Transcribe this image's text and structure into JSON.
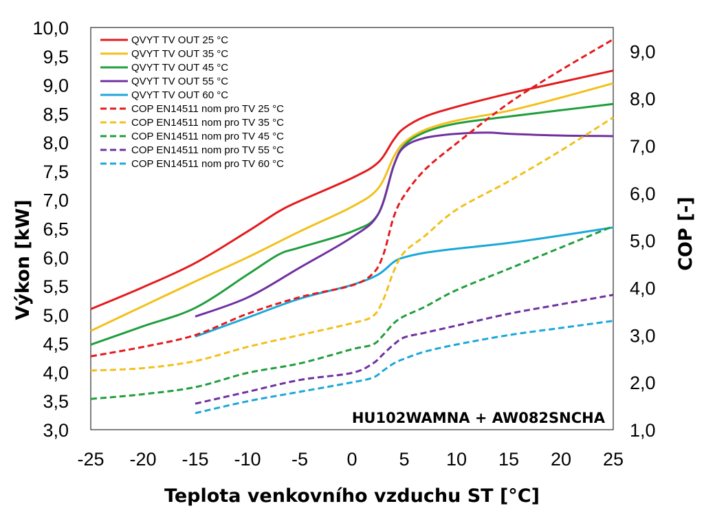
{
  "chart_data": {
    "type": "line",
    "annotation": "HU102WAMNA + AW082SNCHA",
    "xlabel": "Teplota venkovního vzduchu ST [°C]",
    "ylabel": "Výkon [kW]",
    "y2label": "COP [-]",
    "xlim": [
      -25,
      25
    ],
    "ylim": [
      3.0,
      10.0
    ],
    "y2lim": [
      1.0,
      9.5
    ],
    "x_ticks": [
      "-25",
      "-20",
      "-15",
      "-10",
      "-5",
      "0",
      "5",
      "10",
      "15",
      "20",
      "25"
    ],
    "y_ticks": [
      "3,0",
      "3,5",
      "4,0",
      "4,5",
      "5,0",
      "5,5",
      "6,0",
      "6,5",
      "7,0",
      "7,5",
      "8,0",
      "8,5",
      "9,0",
      "9,5",
      "10,0"
    ],
    "y2_ticks": [
      "1,0",
      "2,0",
      "3,0",
      "4,0",
      "5,0",
      "6,0",
      "7,0",
      "8,0",
      "9,0"
    ],
    "grid": false,
    "legend_position": "top-left",
    "series": [
      {
        "name": "QVYT TV OUT 25 °C",
        "axis": "left",
        "style": "solid",
        "color": "#e41a1c",
        "x": [
          -25,
          -20,
          -15,
          -10,
          -7,
          -5,
          0,
          2.5,
          4,
          5,
          7,
          10,
          15,
          20,
          25
        ],
        "y": [
          5.1,
          5.48,
          5.9,
          6.45,
          6.8,
          6.98,
          7.38,
          7.65,
          8.05,
          8.25,
          8.45,
          8.62,
          8.85,
          9.05,
          9.25
        ]
      },
      {
        "name": "QVYT TV OUT 35 °C",
        "axis": "left",
        "style": "solid",
        "color": "#f2c01a",
        "x": [
          -25,
          -20,
          -15,
          -10,
          -5,
          0,
          2.5,
          4,
          5,
          7,
          10,
          15,
          20,
          25
        ],
        "y": [
          4.72,
          5.15,
          5.58,
          6.0,
          6.45,
          6.88,
          7.2,
          7.75,
          8.0,
          8.22,
          8.38,
          8.55,
          8.78,
          9.03
        ]
      },
      {
        "name": "QVYT TV OUT 45 °C",
        "axis": "left",
        "style": "solid",
        "color": "#1f9e3c",
        "x": [
          -25,
          -20,
          -15,
          -10,
          -7,
          -5,
          0,
          2.5,
          4,
          5,
          7,
          10,
          15,
          20,
          25
        ],
        "y": [
          4.48,
          4.8,
          5.12,
          5.7,
          6.05,
          6.17,
          6.45,
          6.75,
          7.6,
          7.95,
          8.18,
          8.33,
          8.45,
          8.56,
          8.67
        ]
      },
      {
        "name": "QVYT TV OUT 55 °C",
        "axis": "left",
        "style": "solid",
        "color": "#7030a0",
        "x": [
          -15,
          -10,
          -5,
          0,
          2.5,
          4,
          5,
          7,
          10,
          13,
          15,
          20,
          25
        ],
        "y": [
          4.97,
          5.3,
          5.82,
          6.35,
          6.75,
          7.6,
          7.92,
          8.08,
          8.15,
          8.17,
          8.15,
          8.12,
          8.11
        ]
      },
      {
        "name": "QVYT TV OUT 60 °C",
        "axis": "left",
        "style": "solid",
        "color": "#1aa7d9",
        "x": [
          -15,
          -10,
          -5,
          0,
          2.5,
          4,
          5,
          7,
          10,
          15,
          20,
          25
        ],
        "y": [
          4.62,
          4.95,
          5.28,
          5.52,
          5.7,
          5.92,
          6.0,
          6.08,
          6.15,
          6.25,
          6.38,
          6.52
        ]
      },
      {
        "name": "COP EN14511 nom pro TV 25 °C",
        "axis": "right",
        "style": "dashed",
        "color": "#e41a1c",
        "x": [
          -25,
          -20,
          -15,
          -10,
          -5,
          0,
          2,
          3,
          4,
          5,
          7,
          10,
          15,
          20,
          25
        ],
        "y": [
          2.55,
          2.75,
          3.0,
          3.45,
          3.8,
          4.05,
          4.3,
          4.7,
          5.5,
          5.95,
          6.5,
          7.05,
          7.9,
          8.6,
          9.25
        ]
      },
      {
        "name": "COP EN14511 nom pro TV 35 °C",
        "axis": "right",
        "style": "dashed",
        "color": "#f2c01a",
        "x": [
          -25,
          -20,
          -15,
          -10,
          -5,
          0,
          2,
          3,
          4,
          5,
          7,
          10,
          15,
          20,
          25
        ],
        "y": [
          2.25,
          2.3,
          2.45,
          2.75,
          3.0,
          3.25,
          3.4,
          3.75,
          4.35,
          4.75,
          5.1,
          5.65,
          6.25,
          6.9,
          7.6
        ]
      },
      {
        "name": "COP EN14511 nom pro TV 45 °C",
        "axis": "right",
        "style": "dashed",
        "color": "#1f9e3c",
        "x": [
          -25,
          -20,
          -15,
          -10,
          -5,
          0,
          2,
          3,
          4,
          5,
          7,
          10,
          15,
          20,
          25
        ],
        "y": [
          1.65,
          1.75,
          1.9,
          2.2,
          2.4,
          2.7,
          2.8,
          3.0,
          3.25,
          3.4,
          3.6,
          3.95,
          4.4,
          4.85,
          5.3
        ]
      },
      {
        "name": "COP EN14511 nom pro TV 55 °C",
        "axis": "right",
        "style": "dashed",
        "color": "#7030a0",
        "x": [
          -15,
          -10,
          -5,
          0,
          2,
          3,
          4,
          5,
          7,
          10,
          15,
          20,
          25
        ],
        "y": [
          1.55,
          1.8,
          2.05,
          2.2,
          2.4,
          2.6,
          2.8,
          2.95,
          3.05,
          3.2,
          3.45,
          3.65,
          3.85
        ]
      },
      {
        "name": "COP EN14511 nom pro TV 60 °C",
        "axis": "right",
        "style": "dashed",
        "color": "#1aa7d9",
        "x": [
          -15,
          -10,
          -5,
          0,
          2,
          3,
          4,
          5,
          7,
          10,
          15,
          20,
          25
        ],
        "y": [
          1.35,
          1.6,
          1.8,
          2.0,
          2.1,
          2.25,
          2.4,
          2.5,
          2.65,
          2.8,
          3.0,
          3.15,
          3.3
        ]
      }
    ]
  }
}
